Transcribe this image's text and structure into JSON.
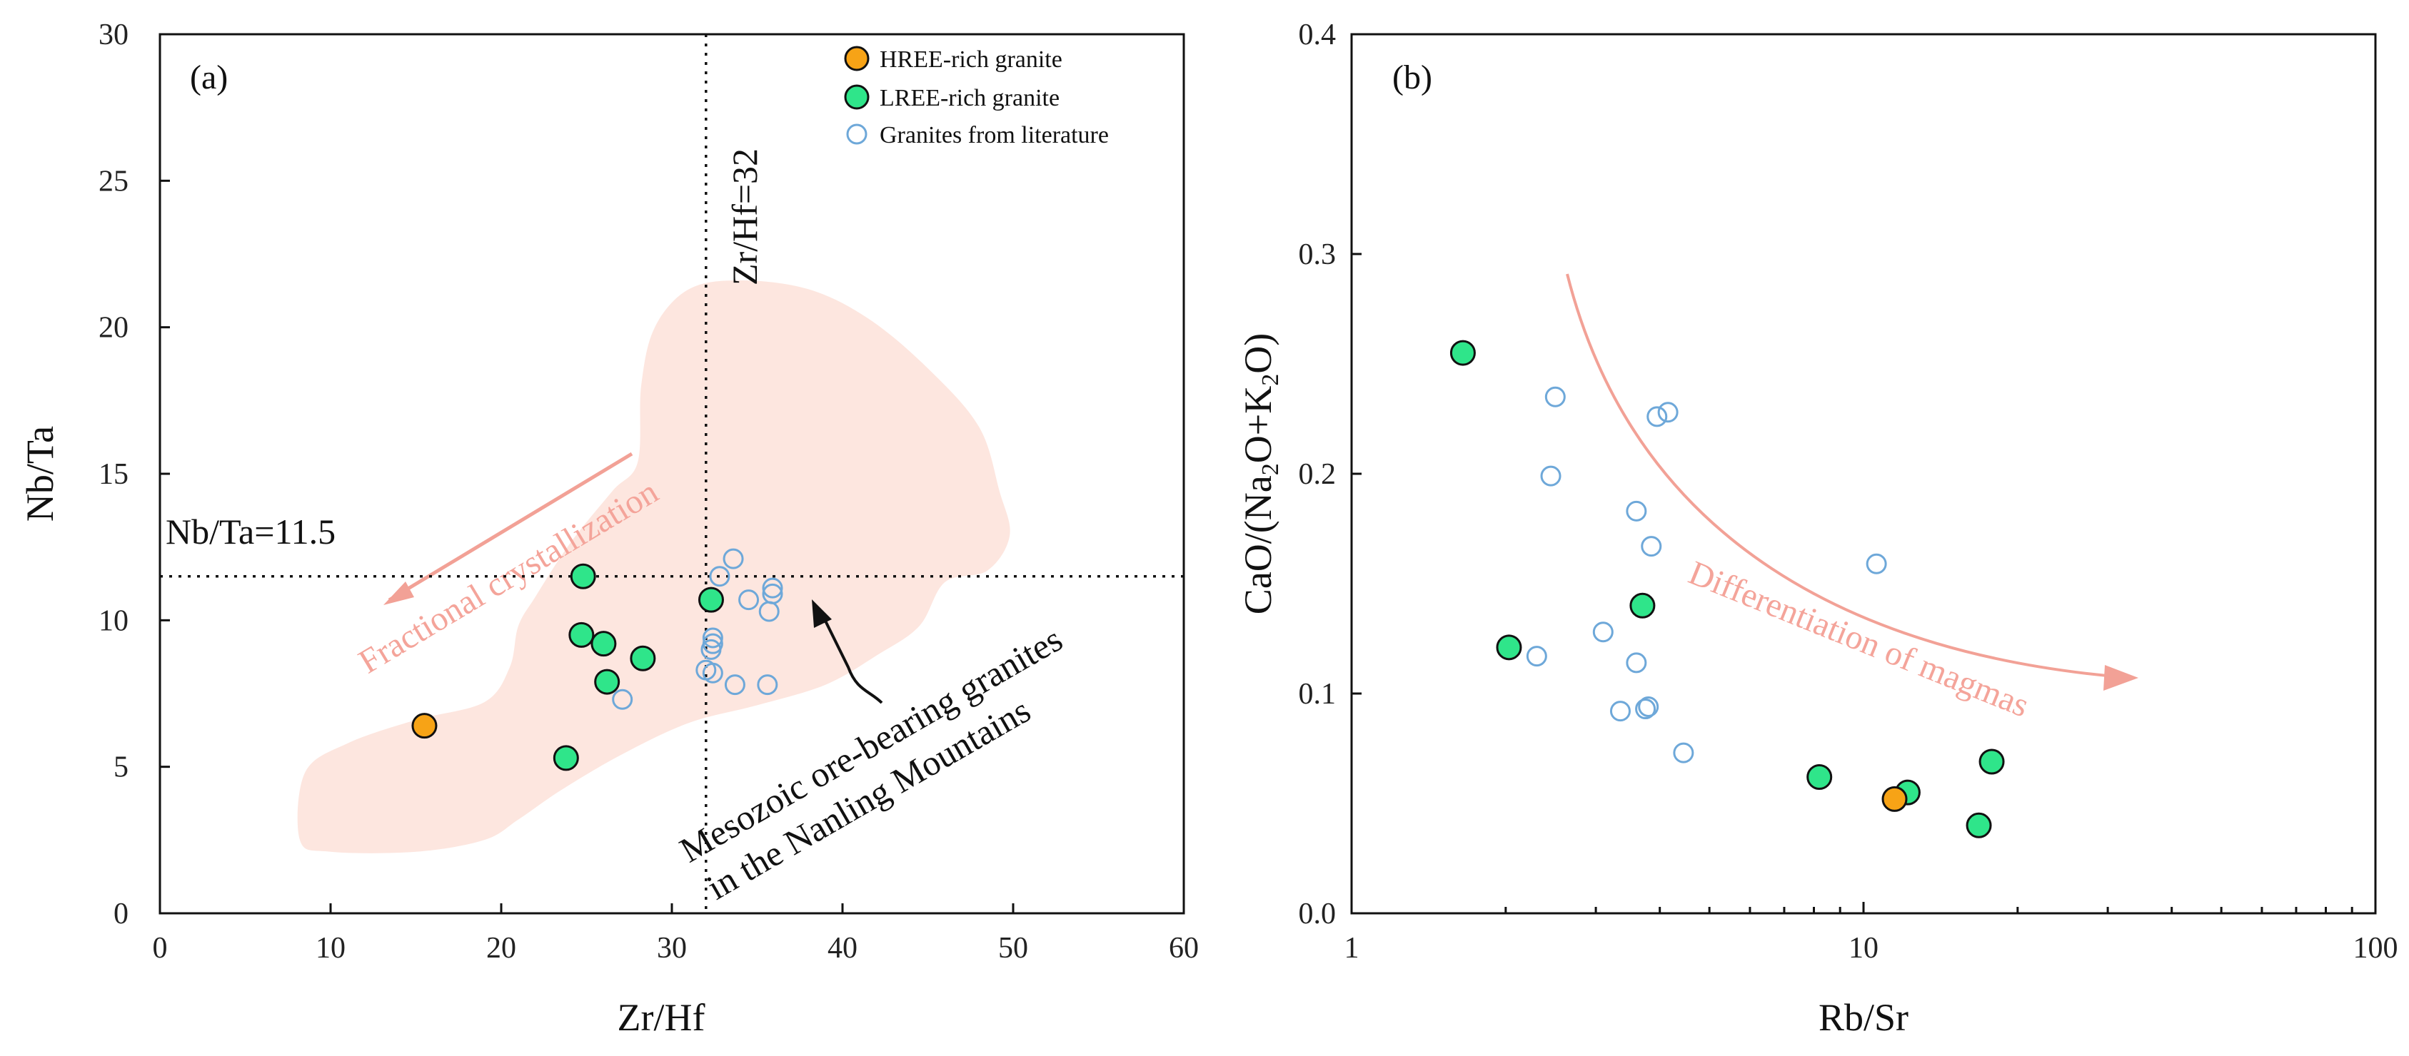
{
  "colors": {
    "hree": "#f7a316",
    "lree": "#2fe58a",
    "literature": "#6ea8d9",
    "field": "#fde6df",
    "arrow_pink": "#f2a196"
  },
  "legend": {
    "hree_label": "HREE-rich granite",
    "lree_label": "LREE-rich granite",
    "lit_label": "Granites from literature"
  },
  "chart_data": [
    {
      "type": "scatter",
      "panel_label": "(a)",
      "xlabel": "Zr/Hf",
      "ylabel": "Nb/Ta",
      "xlim": [
        0,
        60
      ],
      "ylim": [
        0,
        30
      ],
      "xticks": [
        0,
        10,
        20,
        30,
        40,
        50,
        60
      ],
      "yticks": [
        0,
        5,
        10,
        15,
        20,
        25,
        30
      ],
      "reference_lines": [
        {
          "axis": "x",
          "value": 32,
          "label": "Zr/Hf=32"
        },
        {
          "axis": "y",
          "value": 11.5,
          "label": "Nb/Ta=11.5"
        }
      ],
      "annotations": {
        "fractional": "Fractional crystallization",
        "field_line1": "Mesozoic ore-bearing granites",
        "field_line2": "in the Nanling Mountains"
      },
      "field_polygon": [
        [
          8.2,
          2.5
        ],
        [
          8.5,
          4.8
        ],
        [
          11,
          5.8
        ],
        [
          15,
          6.6
        ],
        [
          19,
          7.2
        ],
        [
          20.5,
          8.4
        ],
        [
          21,
          9.8
        ],
        [
          22,
          10.8
        ],
        [
          24,
          12.6
        ],
        [
          26.5,
          14.4
        ],
        [
          28,
          15.4
        ],
        [
          28.2,
          18.0
        ],
        [
          29,
          20.0
        ],
        [
          31,
          21.3
        ],
        [
          34,
          21.6
        ],
        [
          38,
          21.3
        ],
        [
          41.5,
          20.3
        ],
        [
          45,
          18.6
        ],
        [
          48,
          16.6
        ],
        [
          49.2,
          14.4
        ],
        [
          49.8,
          12.9
        ],
        [
          48.5,
          11.7
        ],
        [
          46,
          11.3
        ],
        [
          44.5,
          9.8
        ],
        [
          42,
          8.8
        ],
        [
          39,
          7.8
        ],
        [
          35,
          7.1
        ],
        [
          31,
          6.5
        ],
        [
          27,
          5.4
        ],
        [
          23.5,
          4.2
        ],
        [
          21,
          3.2
        ],
        [
          19,
          2.5
        ],
        [
          15,
          2.1
        ],
        [
          10,
          2.1
        ]
      ],
      "series": [
        {
          "name": "HREE-rich granite",
          "marker": "hree",
          "points": [
            [
              15.5,
              6.4
            ]
          ]
        },
        {
          "name": "LREE-rich granite",
          "marker": "lree",
          "points": [
            [
              24.8,
              11.5
            ],
            [
              32.3,
              10.7
            ],
            [
              24.7,
              9.5
            ],
            [
              26.0,
              9.2
            ],
            [
              28.3,
              8.7
            ],
            [
              26.2,
              7.9
            ],
            [
              23.8,
              5.3
            ]
          ]
        },
        {
          "name": "Granites from literature",
          "marker": "lit",
          "points": [
            [
              33.6,
              12.1
            ],
            [
              32.8,
              11.5
            ],
            [
              35.9,
              11.1
            ],
            [
              35.9,
              10.9
            ],
            [
              34.5,
              10.7
            ],
            [
              35.7,
              10.3
            ],
            [
              32.4,
              9.4
            ],
            [
              32.4,
              9.2
            ],
            [
              32.3,
              9.0
            ],
            [
              32.0,
              8.3
            ],
            [
              32.4,
              8.2
            ],
            [
              33.7,
              7.8
            ],
            [
              35.6,
              7.8
            ],
            [
              27.1,
              7.3
            ]
          ]
        }
      ]
    },
    {
      "type": "scatter",
      "panel_label": "(b)",
      "xlabel": "Rb/Sr",
      "ylabel": "CaO/(Na2O+K2O)",
      "xscale": "log",
      "xlim": [
        1,
        100
      ],
      "ylim": [
        0,
        0.4
      ],
      "xticks": [
        1,
        10,
        100
      ],
      "xtick_labels": [
        "1",
        "10",
        "100"
      ],
      "yticks": [
        0,
        0.1,
        0.2,
        0.3,
        0.4
      ],
      "ytick_labels": [
        "0.0",
        "0.1",
        "0.2",
        "0.3",
        "0.4"
      ],
      "annotations": {
        "differentiation": "Differentiation of magmas"
      },
      "series": [
        {
          "name": "HREE-rich granite",
          "marker": "hree",
          "points": [
            [
              11.5,
              0.052
            ]
          ]
        },
        {
          "name": "LREE-rich granite",
          "marker": "lree",
          "points": [
            [
              1.65,
              0.255
            ],
            [
              2.03,
              0.121
            ],
            [
              3.7,
              0.14
            ],
            [
              8.2,
              0.062
            ],
            [
              12.2,
              0.055
            ],
            [
              16.8,
              0.04
            ],
            [
              17.8,
              0.069
            ]
          ]
        },
        {
          "name": "Granites from literature",
          "marker": "lit",
          "points": [
            [
              2.5,
              0.235
            ],
            [
              2.45,
              0.199
            ],
            [
              4.15,
              0.228
            ],
            [
              3.95,
              0.226
            ],
            [
              3.6,
              0.183
            ],
            [
              3.85,
              0.167
            ],
            [
              10.6,
              0.159
            ],
            [
              3.1,
              0.128
            ],
            [
              2.3,
              0.117
            ],
            [
              3.6,
              0.114
            ],
            [
              3.8,
              0.094
            ],
            [
              3.75,
              0.093
            ],
            [
              3.35,
              0.092
            ],
            [
              4.45,
              0.073
            ]
          ]
        }
      ]
    }
  ]
}
